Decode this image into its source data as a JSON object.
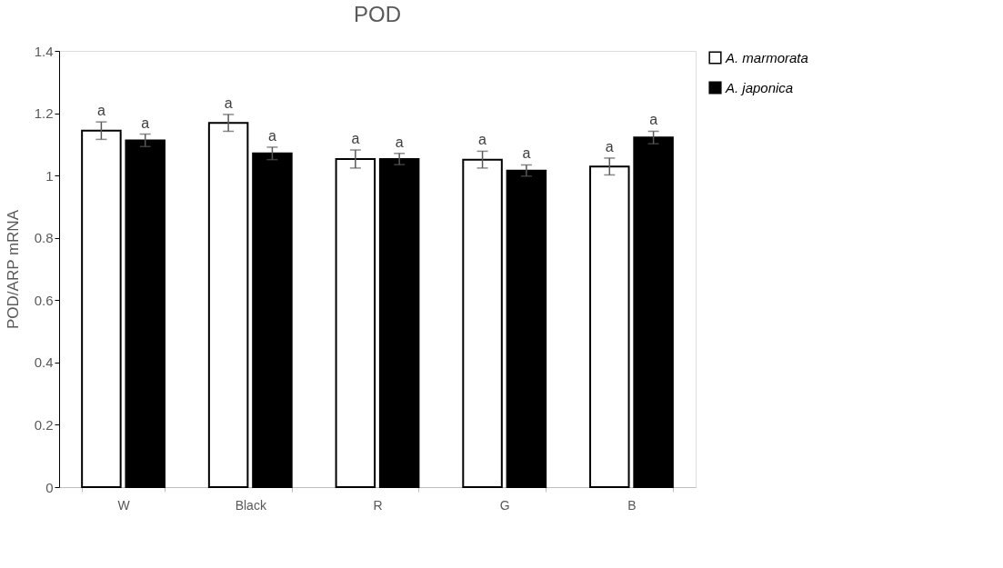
{
  "chart_data": {
    "type": "bar",
    "title": "POD",
    "ylabel": "POD/ARP mRNA",
    "categories": [
      "W",
      "Black",
      "R",
      "G",
      "B"
    ],
    "series": [
      {
        "name": "A. marmorata",
        "color": "#ffffff",
        "values": [
          1.144,
          1.169,
          1.053,
          1.051,
          1.029
        ],
        "errors": [
          0.028,
          0.027,
          0.029,
          0.027,
          0.027
        ],
        "value_labels": [
          "a",
          "a",
          "a",
          "a",
          "a"
        ]
      },
      {
        "name": "A. japonica",
        "color": "#000000",
        "values": [
          1.113,
          1.071,
          1.053,
          1.016,
          1.122
        ],
        "errors": [
          0.02,
          0.02,
          0.018,
          0.018,
          0.02
        ],
        "value_labels": [
          "a",
          "a",
          "a",
          "a",
          "a"
        ]
      }
    ],
    "ylim": [
      0,
      1.4
    ],
    "yticks": [
      0,
      0.2,
      0.4,
      0.6,
      0.8,
      1,
      1.2,
      1.4
    ],
    "grid": false,
    "legend": "right"
  }
}
